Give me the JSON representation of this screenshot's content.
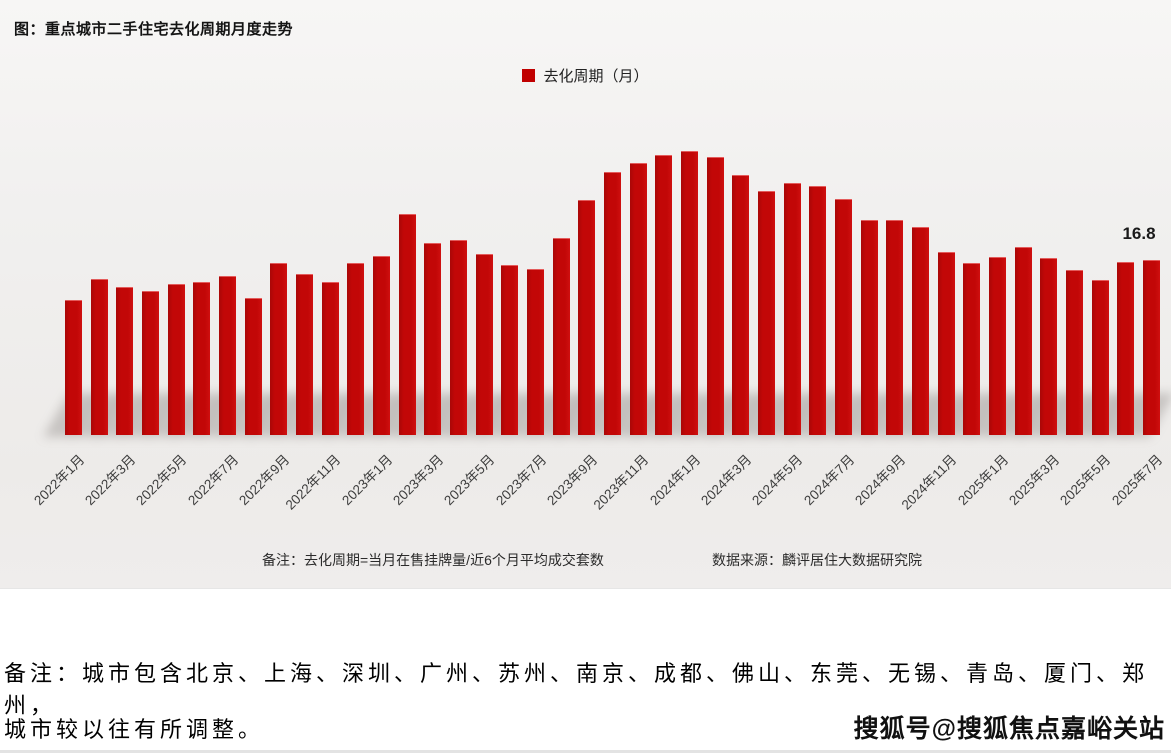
{
  "title": "图：重点城市二手住宅去化周期月度走势",
  "legend": {
    "label": "去化周期（月）",
    "color": "#c00000",
    "position": "top-center"
  },
  "chart_data": {
    "type": "bar",
    "title": "重点城市二手住宅去化周期月度走势",
    "series_name": "去化周期（月）",
    "bar_color": "#c00000",
    "grid": false,
    "ylabel": "",
    "xlabel": "",
    "ylim": [
      0,
      29
    ],
    "x": [
      "2022年1月",
      "2022年2月",
      "2022年3月",
      "2022年4月",
      "2022年5月",
      "2022年6月",
      "2022年7月",
      "2022年8月",
      "2022年9月",
      "2022年10月",
      "2022年11月",
      "2022年12月",
      "2023年1月",
      "2023年2月",
      "2023年3月",
      "2023年4月",
      "2023年5月",
      "2023年6月",
      "2023年7月",
      "2023年8月",
      "2023年9月",
      "2023年10月",
      "2023年11月",
      "2023年12月",
      "2024年1月",
      "2024年2月",
      "2024年3月",
      "2024年4月",
      "2024年5月",
      "2024年6月",
      "2024年7月",
      "2024年8月",
      "2024年9月",
      "2024年10月",
      "2024年11月",
      "2024年12月",
      "2025年1月",
      "2025年2月",
      "2025年3月",
      "2025年4月",
      "2025年5月",
      "2025年6月",
      "2025年7月"
    ],
    "values": [
      13.0,
      15.0,
      14.2,
      13.8,
      14.5,
      14.7,
      15.3,
      13.2,
      16.5,
      15.5,
      14.7,
      16.5,
      17.2,
      21.2,
      18.4,
      18.7,
      17.4,
      16.3,
      15.9,
      18.9,
      22.6,
      25.2,
      26.1,
      26.9,
      27.3,
      26.7,
      25.0,
      23.4,
      24.2,
      23.9,
      22.7,
      20.6,
      20.6,
      20.0,
      17.6,
      16.5,
      17.1,
      18.0,
      17.0,
      15.8,
      14.9,
      16.6,
      16.8
    ],
    "x_tick_every": 2,
    "data_label": {
      "text": "16.8",
      "x": "2025年7月"
    }
  },
  "footnote": {
    "note": "备注：去化周期=当月在售挂牌量/近6个月平均成交套数",
    "source": "数据来源：麟评居住大数据研究院"
  },
  "bottom_note": {
    "line1": "备注：城市包含北京、上海、深圳、广州、苏州、南京、成都、佛山、东莞、无锡、青岛、厦门、郑州，",
    "line2": "城市较以往有所调整。"
  },
  "watermark": "搜狐号@搜狐焦点嘉峪关站"
}
